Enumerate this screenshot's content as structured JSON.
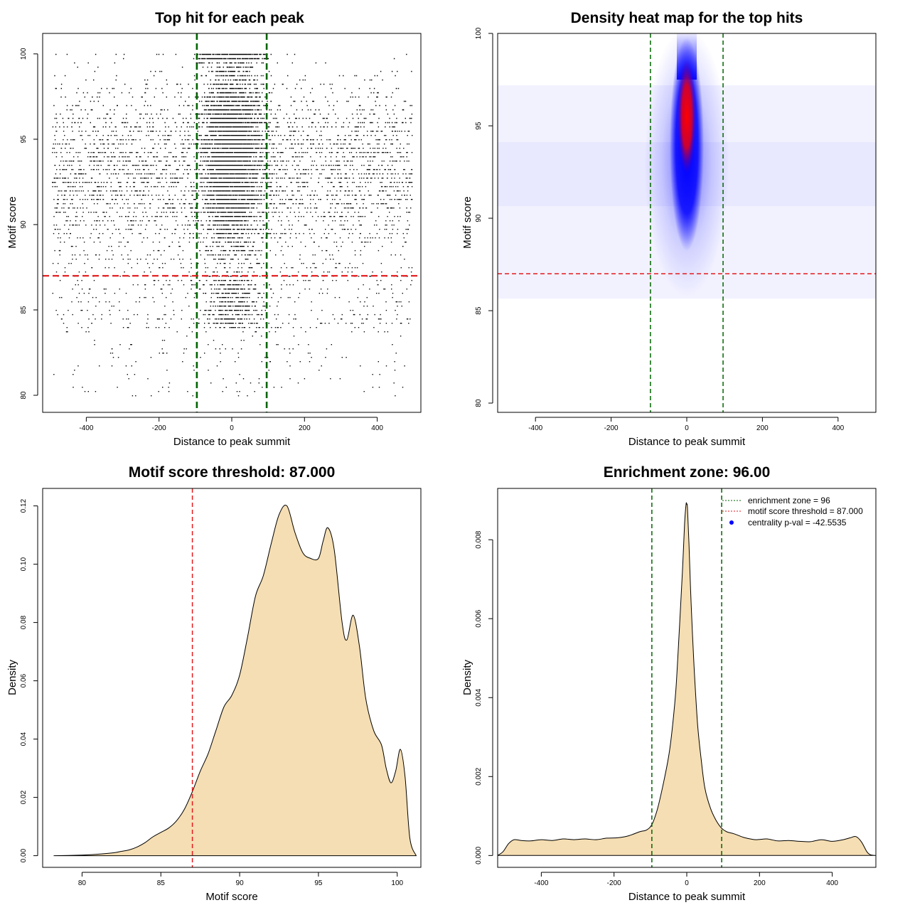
{
  "chart_data": [
    {
      "type": "scatter",
      "title": "Top hit for each peak",
      "xlabel": "Distance to peak summit",
      "ylabel": "Motif score",
      "xlim": [
        -520,
        520
      ],
      "ylim": [
        79,
        101.2
      ],
      "xticks": [
        -400,
        -200,
        0,
        200,
        400
      ],
      "yticks": [
        80,
        85,
        90,
        95,
        100
      ],
      "xtick_labels": [
        "-400",
        "-200",
        "0",
        "200",
        "400"
      ],
      "ytick_labels": [
        "80",
        "85",
        "90",
        "95",
        "100"
      ],
      "vlines": [
        -96,
        96
      ],
      "hline": 87,
      "points_description": "approx. 9000 peaks; uniform spread over -500..500, concentrated within +/-100 of the summit at scores 86-100",
      "colors": {
        "points": "#000000",
        "vline": "#006400",
        "hline": "#e31a1c"
      }
    },
    {
      "type": "heatmap",
      "title": "Density heat map for the top hits",
      "xlabel": "Distance to peak summit",
      "ylabel": "Motif score",
      "xlim": [
        -500,
        500
      ],
      "ylim": [
        79.5,
        100
      ],
      "xticks": [
        -400,
        -200,
        0,
        200,
        400
      ],
      "yticks": [
        80,
        85,
        90,
        95,
        100
      ],
      "xtick_labels": [
        "-400",
        "-200",
        "0",
        "200",
        "400"
      ],
      "ytick_labels": [
        "80",
        "85",
        "90",
        "95",
        "100"
      ],
      "vlines": [
        -96,
        96
      ],
      "hline": 87,
      "peak_center": {
        "x": 0,
        "y": 95.5
      },
      "colors": {
        "low": "#ffffff",
        "mid": "#0000ff",
        "high": "#ff0000",
        "vline": "#006400",
        "hline": "#e31a1c"
      }
    },
    {
      "type": "area",
      "title": "Motif score threshold: 87.000",
      "xlabel": "Motif score",
      "ylabel": "Density",
      "xlim": [
        77.5,
        101.5
      ],
      "ylim": [
        -0.004,
        0.126
      ],
      "xticks": [
        80,
        85,
        90,
        95,
        100
      ],
      "yticks": [
        0,
        0.02,
        0.04,
        0.06,
        0.08,
        0.1,
        0.12
      ],
      "xtick_labels": [
        "80",
        "85",
        "90",
        "95",
        "100"
      ],
      "ytick_labels": [
        "0.00",
        "0.02",
        "0.04",
        "0.06",
        "0.08",
        "0.10",
        "0.12"
      ],
      "vline": 87,
      "x": [
        78.2,
        80,
        81,
        82,
        82.5,
        83,
        83.5,
        84,
        84.5,
        85,
        85.5,
        86,
        86.5,
        87,
        87.5,
        88,
        88.5,
        89,
        89.5,
        90,
        90.5,
        91,
        91.5,
        92,
        92.5,
        93,
        93.5,
        94,
        94.5,
        95,
        95.3,
        95.6,
        96,
        96.5,
        96.8,
        97.2,
        97.6,
        98,
        98.5,
        99,
        99.3,
        99.6,
        99.9,
        100.2,
        100.5,
        100.8,
        101.2
      ],
      "y": [
        0,
        0.0002,
        0.0005,
        0.001,
        0.0015,
        0.002,
        0.003,
        0.0045,
        0.0065,
        0.008,
        0.0095,
        0.012,
        0.016,
        0.022,
        0.029,
        0.035,
        0.043,
        0.051,
        0.055,
        0.062,
        0.075,
        0.089,
        0.096,
        0.107,
        0.117,
        0.12,
        0.111,
        0.104,
        0.102,
        0.102,
        0.108,
        0.1125,
        0.105,
        0.08,
        0.074,
        0.0825,
        0.072,
        0.054,
        0.043,
        0.038,
        0.03,
        0.025,
        0.029,
        0.0365,
        0.027,
        0.006,
        0
      ],
      "colors": {
        "fill": "#f5deb3",
        "line": "#000000",
        "vline": "#e31a1c"
      }
    },
    {
      "type": "area",
      "title": "Enrichment zone: 96.00",
      "xlabel": "Distance to peak summit",
      "ylabel": "Density",
      "xlim": [
        -520,
        520
      ],
      "ylim": [
        -0.0003,
        0.0093
      ],
      "xticks": [
        -400,
        -200,
        0,
        200,
        400
      ],
      "yticks": [
        0,
        0.002,
        0.004,
        0.006,
        0.008
      ],
      "xtick_labels": [
        "-400",
        "-200",
        "0",
        "200",
        "400"
      ],
      "ytick_labels": [
        "0.000",
        "0.002",
        "0.004",
        "0.006",
        "0.008"
      ],
      "vlines": [
        -96,
        96
      ],
      "x": [
        -520,
        -505,
        -490,
        -475,
        -455,
        -430,
        -400,
        -370,
        -340,
        -310,
        -280,
        -250,
        -220,
        -190,
        -160,
        -130,
        -110,
        -95,
        -80,
        -65,
        -50,
        -40,
        -30,
        -20,
        -12,
        -6,
        -2,
        0,
        2,
        6,
        12,
        20,
        30,
        40,
        50,
        65,
        80,
        95,
        110,
        130,
        160,
        190,
        220,
        250,
        280,
        310,
        340,
        370,
        400,
        430,
        450,
        465,
        480,
        495,
        505,
        520
      ],
      "y": [
        0,
        0.0001,
        0.0003,
        0.0004,
        0.00038,
        0.00037,
        0.0004,
        0.00038,
        0.00042,
        0.0004,
        0.00042,
        0.0004,
        0.00044,
        0.00045,
        0.0005,
        0.0006,
        0.00065,
        0.0008,
        0.0012,
        0.0018,
        0.0025,
        0.0032,
        0.0042,
        0.0058,
        0.0072,
        0.0084,
        0.0089,
        0.0089,
        0.0088,
        0.0079,
        0.0064,
        0.0048,
        0.0033,
        0.0024,
        0.0017,
        0.0012,
        0.0009,
        0.0007,
        0.0006,
        0.00055,
        0.00045,
        0.0004,
        0.00042,
        0.00037,
        0.00038,
        0.00036,
        0.00035,
        0.0004,
        0.00036,
        0.0004,
        0.00045,
        0.00048,
        0.00035,
        0.0001,
        2e-05,
        0
      ],
      "legend": {
        "position": "top-right",
        "items": [
          {
            "label": "enrichment zone = 96",
            "kind": "line",
            "color": "#006400"
          },
          {
            "label": "motif score threshold = 87.000",
            "kind": "line",
            "color": "#e31a1c"
          },
          {
            "label": "centrality p-val = -42.5535",
            "kind": "point",
            "color": "#0000ff"
          }
        ]
      },
      "colors": {
        "fill": "#f5deb3",
        "line": "#000000",
        "vline": "#006400"
      }
    }
  ]
}
